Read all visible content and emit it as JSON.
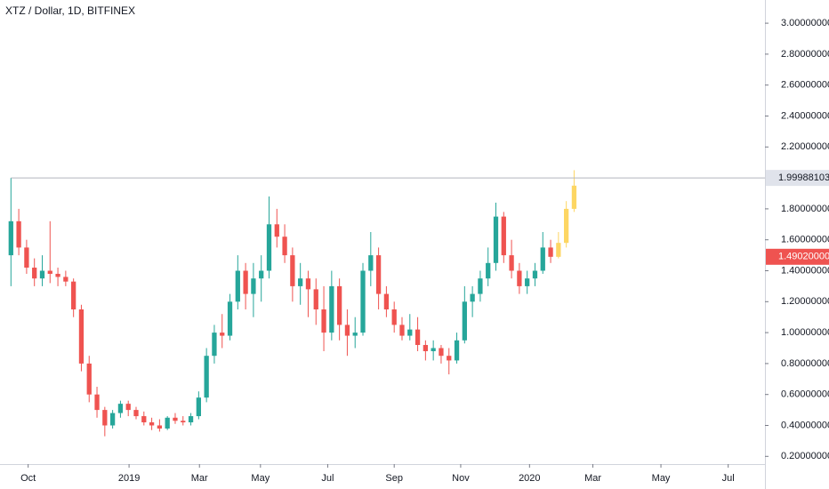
{
  "chart_data": {
    "type": "candlestick",
    "title": "XTZ / Dollar, 1D, BITFINEX",
    "xlim": [
      -1.4,
      96.4
    ],
    "xticks": [
      {
        "value": 2.2,
        "label": "Oct"
      },
      {
        "value": 15.1,
        "label": "2019"
      },
      {
        "value": 24.1,
        "label": "Mar"
      },
      {
        "value": 31.9,
        "label": "May"
      },
      {
        "value": 40.5,
        "label": "Jul"
      },
      {
        "value": 49,
        "label": "Sep"
      },
      {
        "value": 57.5,
        "label": "Nov"
      },
      {
        "value": 66.3,
        "label": "2020"
      },
      {
        "value": 74.4,
        "label": "Mar"
      },
      {
        "value": 83.1,
        "label": "May"
      },
      {
        "value": 91.7,
        "label": "Jul"
      }
    ],
    "ylim": [
      0.15,
      3.15
    ],
    "yticks": [
      {
        "value": 0.2,
        "label": "0.20000000"
      },
      {
        "value": 0.4,
        "label": "0.40000000"
      },
      {
        "value": 0.6,
        "label": "0.60000000"
      },
      {
        "value": 0.8,
        "label": "0.80000000"
      },
      {
        "value": 1.0,
        "label": "1.00000000"
      },
      {
        "value": 1.2,
        "label": "1.20000000"
      },
      {
        "value": 1.4,
        "label": "1.40000000"
      },
      {
        "value": 1.6,
        "label": "1.60000000"
      },
      {
        "value": 1.8,
        "label": "1.80000000"
      },
      {
        "value": 2.2,
        "label": "2.20000000"
      },
      {
        "value": 2.4,
        "label": "2.40000000"
      },
      {
        "value": 2.6,
        "label": "2.60000000"
      },
      {
        "value": 2.8,
        "label": "2.80000000"
      },
      {
        "value": 3.0,
        "label": "3.00000000"
      }
    ],
    "price_line": {
      "value": 1.99988103,
      "color": "#b2b5be"
    },
    "last_price": {
      "value": 1.4902,
      "label": "1.49020000",
      "color": "#ef5350"
    },
    "series": [
      {
        "up_color": "#26a69a",
        "down_color": "#ef5350",
        "x": [
          0,
          1,
          2,
          3,
          4,
          5,
          6,
          7,
          8,
          9,
          10,
          11,
          12,
          13,
          14,
          15,
          16,
          17,
          18,
          19,
          20,
          21,
          22,
          23,
          24,
          25,
          26,
          27,
          28,
          29,
          30,
          31,
          32,
          33,
          34,
          35,
          36,
          37,
          38,
          39,
          40,
          41,
          42,
          43,
          44,
          45,
          46,
          47,
          48,
          49,
          50,
          51,
          52,
          53,
          54,
          55,
          56,
          57,
          58,
          59,
          60,
          61,
          62,
          63,
          64,
          65,
          66,
          67,
          68,
          69
        ],
        "open": [
          1.5,
          1.72,
          1.55,
          1.42,
          1.35,
          1.4,
          1.38,
          1.36,
          1.33,
          1.15,
          0.8,
          0.6,
          0.5,
          0.4,
          0.48,
          0.54,
          0.5,
          0.46,
          0.42,
          0.4,
          0.38,
          0.45,
          0.43,
          0.42,
          0.46,
          0.58,
          0.85,
          1.0,
          0.98,
          1.2,
          1.4,
          1.25,
          1.35,
          1.4,
          1.7,
          1.62,
          1.5,
          1.3,
          1.35,
          1.28,
          1.15,
          1.0,
          1.3,
          1.05,
          0.98,
          1.0,
          1.4,
          1.5,
          1.25,
          1.15,
          1.05,
          0.98,
          1.02,
          0.92,
          0.88,
          0.9,
          0.85,
          0.82,
          0.95,
          1.2,
          1.25,
          1.35,
          1.45,
          1.75,
          1.5,
          1.4,
          1.3,
          1.35,
          1.4,
          1.55
        ],
        "high": [
          2.0,
          1.8,
          1.6,
          1.48,
          1.5,
          1.72,
          1.42,
          1.4,
          1.35,
          1.18,
          0.85,
          0.65,
          0.52,
          0.5,
          0.56,
          0.56,
          0.52,
          0.49,
          0.45,
          0.44,
          0.46,
          0.48,
          0.46,
          0.48,
          0.62,
          0.9,
          1.05,
          1.12,
          1.25,
          1.5,
          1.45,
          1.45,
          1.5,
          1.88,
          1.8,
          1.7,
          1.55,
          1.45,
          1.4,
          1.35,
          1.3,
          1.4,
          1.35,
          1.15,
          1.1,
          1.45,
          1.65,
          1.55,
          1.3,
          1.2,
          1.1,
          1.12,
          1.1,
          0.95,
          0.95,
          0.92,
          0.9,
          1.0,
          1.3,
          1.3,
          1.4,
          1.55,
          1.84,
          1.78,
          1.6,
          1.45,
          1.4,
          1.45,
          1.65,
          1.6
        ],
        "low": [
          1.3,
          1.5,
          1.38,
          1.3,
          1.3,
          1.32,
          1.3,
          1.3,
          1.1,
          0.75,
          0.55,
          0.45,
          0.33,
          0.38,
          0.45,
          0.46,
          0.44,
          0.4,
          0.37,
          0.36,
          0.37,
          0.41,
          0.4,
          0.4,
          0.44,
          0.55,
          0.8,
          0.9,
          0.95,
          1.15,
          1.15,
          1.1,
          1.2,
          1.35,
          1.55,
          1.45,
          1.2,
          1.18,
          1.1,
          1.05,
          0.88,
          0.95,
          0.95,
          0.85,
          0.9,
          0.98,
          1.3,
          1.15,
          1.1,
          1.0,
          0.95,
          0.95,
          0.88,
          0.82,
          0.82,
          0.8,
          0.73,
          0.8,
          0.93,
          1.1,
          1.2,
          1.3,
          1.4,
          1.45,
          1.35,
          1.25,
          1.25,
          1.3,
          1.38,
          1.45
        ],
        "close": [
          1.72,
          1.55,
          1.42,
          1.35,
          1.4,
          1.38,
          1.36,
          1.33,
          1.15,
          0.8,
          0.6,
          0.5,
          0.4,
          0.48,
          0.54,
          0.5,
          0.46,
          0.42,
          0.4,
          0.38,
          0.45,
          0.43,
          0.42,
          0.46,
          0.58,
          0.85,
          1.0,
          0.98,
          1.2,
          1.4,
          1.25,
          1.35,
          1.4,
          1.7,
          1.62,
          1.5,
          1.3,
          1.35,
          1.28,
          1.15,
          1.0,
          1.3,
          1.05,
          0.98,
          1.0,
          1.4,
          1.5,
          1.25,
          1.15,
          1.05,
          0.98,
          1.02,
          0.92,
          0.88,
          0.9,
          0.85,
          0.82,
          0.95,
          1.2,
          1.25,
          1.35,
          1.45,
          1.75,
          1.5,
          1.4,
          1.3,
          1.35,
          1.4,
          1.55,
          1.49
        ]
      },
      {
        "color": "#fdd663",
        "x": [
          70,
          71,
          72
        ],
        "open": [
          1.49,
          1.58,
          1.8
        ],
        "high": [
          1.65,
          1.85,
          2.05
        ],
        "low": [
          1.48,
          1.55,
          1.78
        ],
        "close": [
          1.58,
          1.8,
          1.95
        ]
      }
    ]
  }
}
